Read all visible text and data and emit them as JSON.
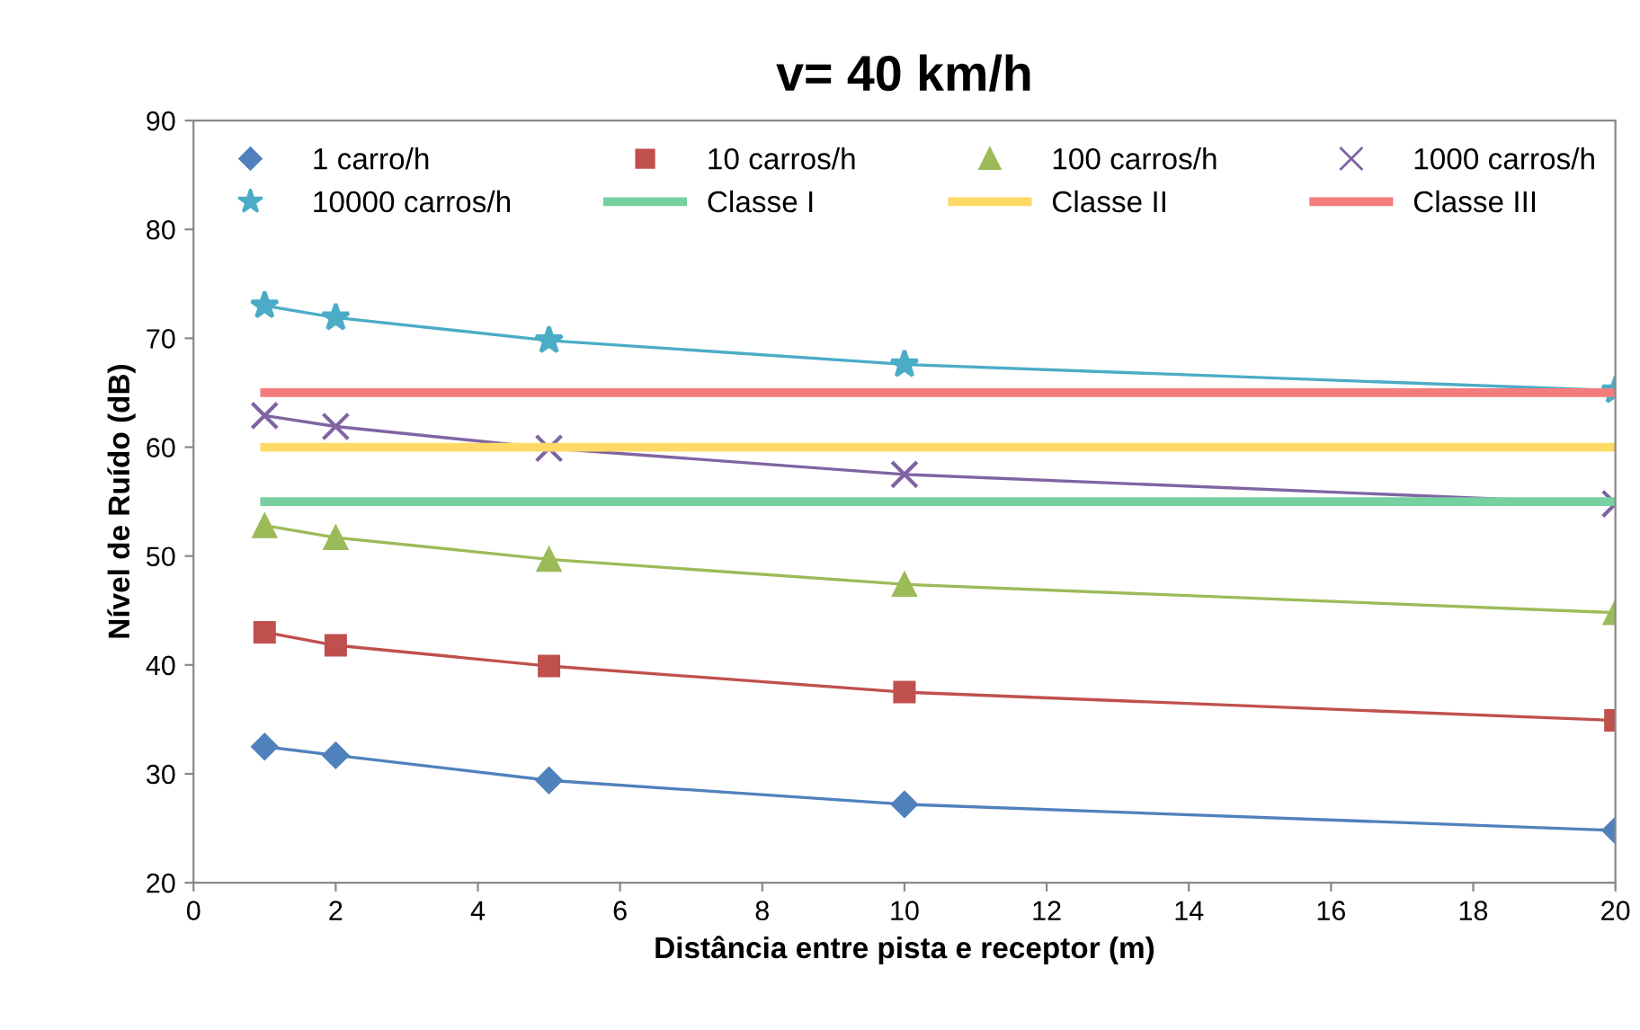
{
  "chart_data": {
    "type": "line",
    "title": "v= 40 km/h",
    "xlabel": "Distância entre pista e receptor (m)",
    "ylabel": "Nível de Ruído (dB)",
    "x": [
      1,
      2,
      5,
      10,
      20
    ],
    "series": [
      {
        "name": "1 carro/h",
        "color": "#4f81bd",
        "marker": "diamond",
        "values": [
          32.5,
          31.7,
          29.4,
          27.2,
          24.8
        ]
      },
      {
        "name": "10 carros/h",
        "color": "#c0504d",
        "marker": "square",
        "values": [
          43.0,
          41.8,
          39.9,
          37.5,
          34.9
        ]
      },
      {
        "name": "100 carros/h",
        "color": "#9bbb59",
        "marker": "triangle",
        "values": [
          52.8,
          51.7,
          49.7,
          47.4,
          44.8
        ]
      },
      {
        "name": "1000 carros/h",
        "color": "#8064a2",
        "marker": "cross",
        "values": [
          62.9,
          61.9,
          59.9,
          57.5,
          54.8
        ]
      },
      {
        "name": "10000 carros/h",
        "color": "#4bacc6",
        "marker": "star",
        "values": [
          73.0,
          71.9,
          69.8,
          67.6,
          65.2
        ]
      },
      {
        "name": "Classe I",
        "color": "#77d09f",
        "marker": "none",
        "values": [
          55,
          55,
          55,
          55,
          55
        ]
      },
      {
        "name": "Classe II",
        "color": "#ffd966",
        "marker": "none",
        "values": [
          60,
          60,
          60,
          60,
          60
        ]
      },
      {
        "name": "Classe III",
        "color": "#f47c7c",
        "marker": "none",
        "values": [
          65,
          65,
          65,
          65,
          65
        ]
      }
    ],
    "xlim": [
      0,
      20
    ],
    "xticks": [
      0,
      2,
      4,
      6,
      8,
      10,
      12,
      14,
      16,
      18,
      20
    ],
    "ylim": [
      20,
      90
    ],
    "yticks": [
      20,
      30,
      40,
      50,
      60,
      70,
      80,
      90
    ],
    "grid": false,
    "legend": "top",
    "line_style": "solid"
  }
}
